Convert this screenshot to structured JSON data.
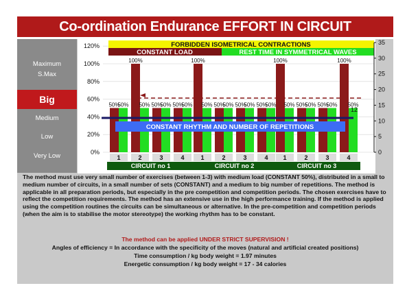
{
  "title": "Co-ordination Endurance EFFORT IN CIRCUIT",
  "left_labels": {
    "maximum": "Maximum",
    "smax": "S.Max",
    "big": "Big",
    "medium": "Medium",
    "low": "Low",
    "very_low": "Very Low"
  },
  "banners": {
    "forbidden": "FORBIDDEN ISOMETRICAL CONTRACTIONS",
    "constant_load": "CONSTANT LOAD",
    "rest_time": "REST TIME IN SYMMETRICAL WAVES",
    "rhythm": "CONSTANT RHYTHM AND NUMBER OF REPETITIONS",
    "line_value": "12"
  },
  "colors": {
    "title_red": "#b01a1a",
    "bar_red": "#8b1a1a",
    "bar_green": "#22dd22",
    "yellow": "#f4f400",
    "rhythm_blue": "#3d6cf5",
    "dark_navy": "#1a1a66",
    "gray_panel": "#c9c9c9"
  },
  "chart_data": {
    "type": "bar",
    "categories": [
      "1",
      "2",
      "3",
      "4",
      "1",
      "2",
      "3",
      "4",
      "1",
      "2",
      "3",
      "4"
    ],
    "groups": [
      "CIRCUIT no 1",
      "CIRCUIT no 2",
      "CIRCUIT no 3"
    ],
    "ylim": [
      0,
      120
    ],
    "yticks_left": [
      "0%",
      "20%",
      "40%",
      "60%",
      "80%",
      "100%",
      "120%"
    ],
    "ylim_right": [
      0,
      35
    ],
    "yticks_right": [
      "0",
      "5",
      "10",
      "15",
      "20",
      "25",
      "30",
      "35"
    ],
    "series": [
      {
        "role": "load",
        "color": "#8b1a1a",
        "values": [
          50,
          100,
          50,
          50,
          100,
          50,
          50,
          50,
          100,
          50,
          50,
          100
        ],
        "labels": [
          "50%",
          "100%",
          "50%",
          "50%",
          "100%",
          "50%",
          "50%",
          "50%",
          "100%",
          "50%",
          "50%",
          "100%"
        ]
      },
      {
        "role": "rest",
        "color": "#22dd22",
        "values": [
          50,
          50,
          50,
          50,
          50,
          50,
          50,
          50,
          50,
          50,
          50,
          50
        ],
        "labels": [
          "50%",
          "50%",
          "50%",
          "50%",
          "50%",
          "50%",
          "50%",
          "50%",
          "50%",
          "50%",
          "50%",
          "50%"
        ]
      }
    ],
    "hline_value": 12
  },
  "text": {
    "p1": "The method must use very small number of exercises (between 1-3) with medium load (CONSTANT 50%), distributed in a small to medium number of circuits, in a small number of sets (CONSTANT) and a medium to big number of repetitions. The method is applicable in all preparation periods, but especially in the pre competition and competition periods. The chosen exercises have to reflect the competition requirements. The method has an extensive use in the high performance training. If the method is applied using the competition routines the circuits can be simultaneous or alternative. In the pre-competition and competition periods (when the aim is to stabilise the motor stereotype) the working rhythm has to be constant.",
    "warning": "The method can be applied UNDER STRICT SUPERVISION !",
    "angles": "Angles of efficiency = In accordance with the specificity of the moves  (natural and artificial created positions)",
    "time": "Time consumption /  kg body weight =  1.97   minutes",
    "energy": "Energetic consumption /  kg body weight =  17 - 34  calories"
  }
}
